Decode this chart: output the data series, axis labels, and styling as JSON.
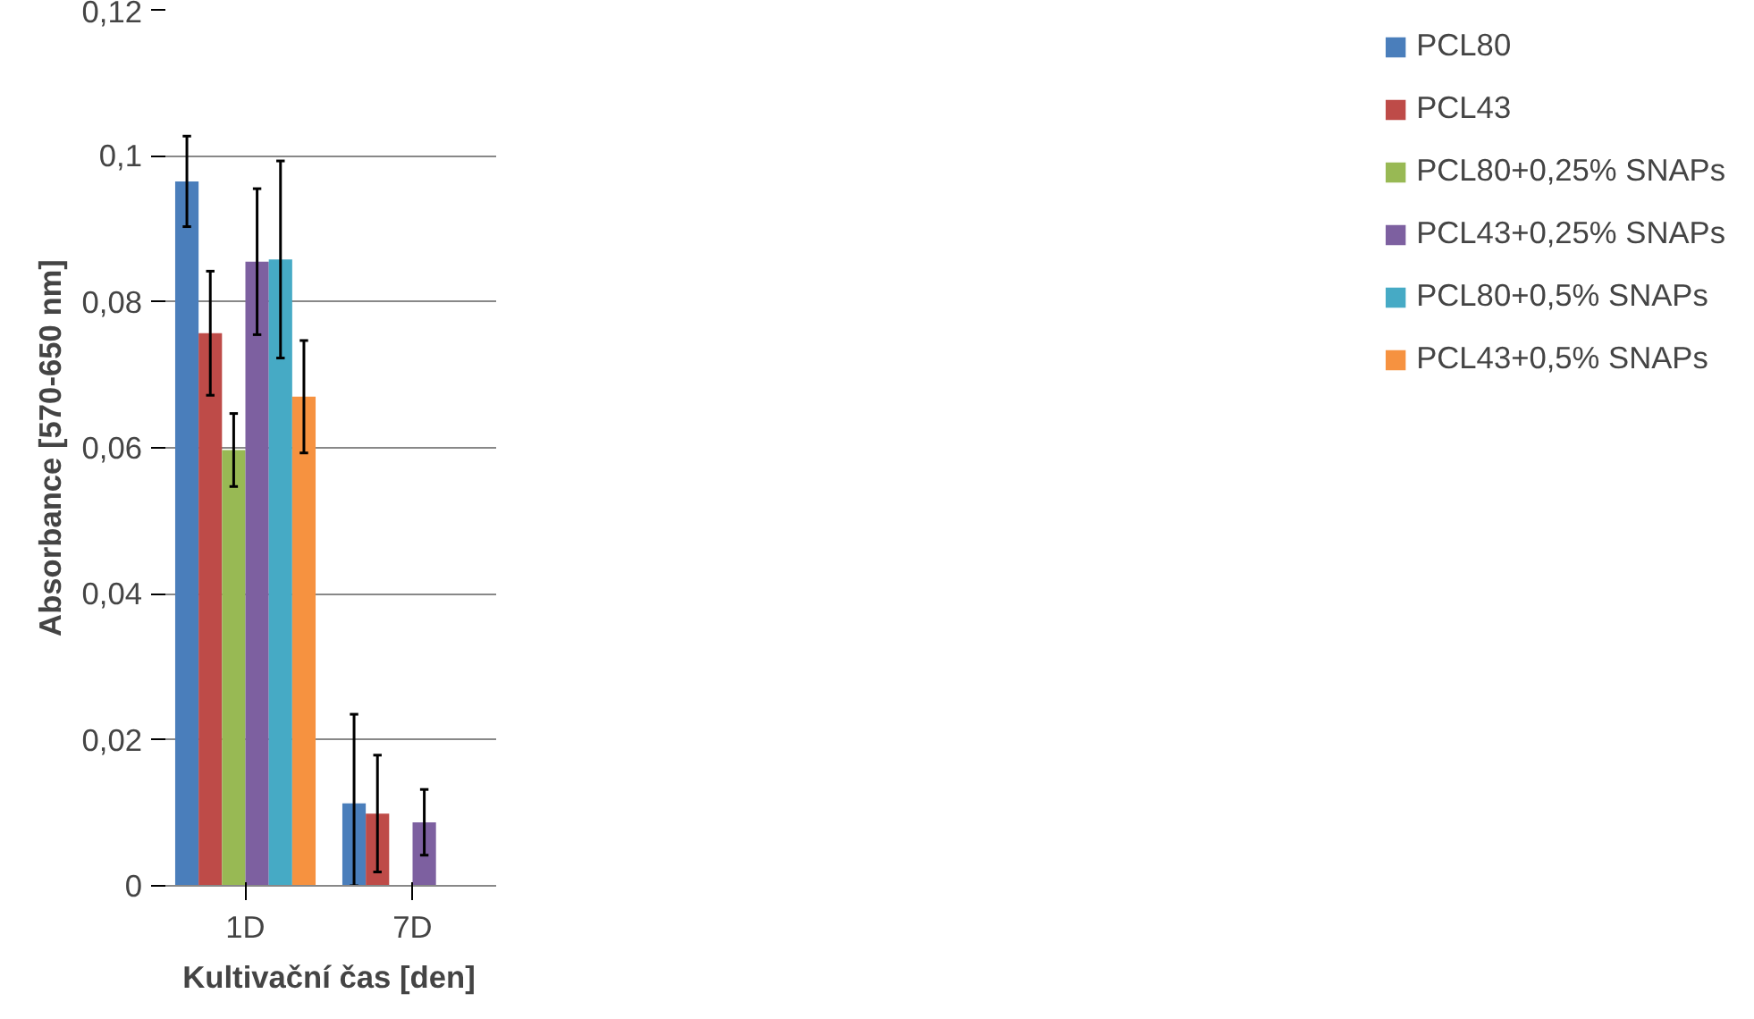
{
  "chart_data": {
    "type": "bar",
    "xlabel": "Kultivační čas [den]",
    "ylabel": "Absorbance [570-650 nm]",
    "categories": [
      "1D",
      "7D"
    ],
    "series": [
      {
        "name": "PCL80",
        "color": "#4a7ebb",
        "values": [
          0.0965,
          0.0113
        ],
        "errors": [
          0.0062,
          [
            0,
            0.0235
          ]
        ]
      },
      {
        "name": "PCL43",
        "color": "#be4b48",
        "values": [
          0.0757,
          0.0099
        ],
        "errors": [
          0.0085,
          0.008
        ]
      },
      {
        "name": "PCL80+0,25% SNAPs",
        "color": "#98b954",
        "values": [
          0.0597,
          0
        ],
        "errors": [
          0.005,
          null
        ]
      },
      {
        "name": "PCL43+0,25% SNAPs",
        "color": "#7d60a0",
        "values": [
          0.0855,
          0.0087
        ],
        "errors": [
          0.01,
          0.0045
        ]
      },
      {
        "name": "PCL80+0,5% SNAPs",
        "color": "#46aac5",
        "values": [
          0.0858,
          0
        ],
        "errors": [
          0.0135,
          null
        ]
      },
      {
        "name": "PCL43+0,5% SNAPs",
        "color": "#f69240",
        "values": [
          0.067,
          0
        ],
        "errors": [
          0.0077,
          null
        ]
      }
    ],
    "ylim": [
      0,
      0.12
    ],
    "yticks": [
      {
        "value": 0,
        "label": "0"
      },
      {
        "value": 0.02,
        "label": "0,02"
      },
      {
        "value": 0.04,
        "label": "0,04"
      },
      {
        "value": 0.06,
        "label": "0,06"
      },
      {
        "value": 0.08,
        "label": "0,08"
      },
      {
        "value": 0.1,
        "label": "0,1"
      },
      {
        "value": 0.12,
        "label": "0,12"
      }
    ],
    "grid": "y",
    "legend": "right"
  }
}
